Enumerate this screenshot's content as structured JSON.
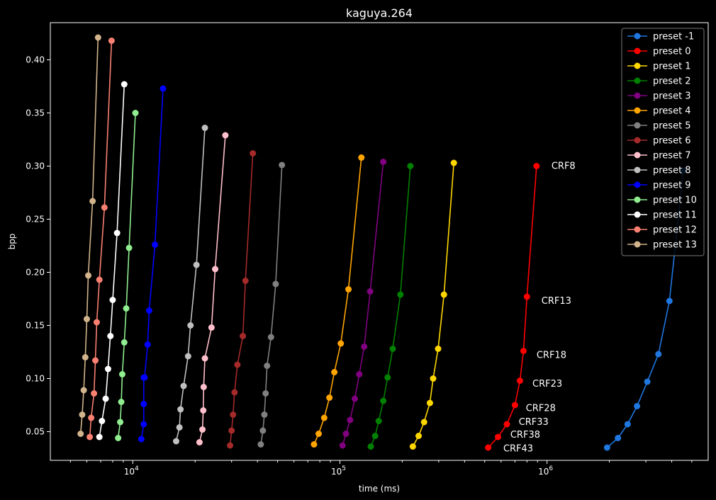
{
  "chart_data": {
    "type": "line",
    "title": "kaguya.264",
    "xlabel": "time (ms)",
    "ylabel": "bpp",
    "xscale": "log",
    "xlim": [
      4000,
      6000000
    ],
    "ylim": [
      0.023,
      0.435
    ],
    "x_ticks": [
      {
        "value": 10000,
        "base": "10",
        "exp": "4"
      },
      {
        "value": 100000,
        "base": "10",
        "exp": "5"
      },
      {
        "value": 1000000,
        "base": "10",
        "exp": "6"
      }
    ],
    "y_ticks": [
      0.05,
      0.1,
      0.15,
      0.2,
      0.25,
      0.3,
      0.35,
      0.4
    ],
    "y_tick_labels": [
      "0.05",
      "0.10",
      "0.15",
      "0.20",
      "0.25",
      "0.30",
      "0.35",
      "0.40"
    ],
    "legend_position": "top-right",
    "grid": false,
    "background": "#000000",
    "series": [
      {
        "name": "preset -1",
        "color": "#1f77e0",
        "x": [
          1950000,
          2200000,
          2450000,
          2720000,
          3050000,
          3450000,
          3900000,
          4550000
        ],
        "y": [
          0.035,
          0.044,
          0.057,
          0.074,
          0.097,
          0.123,
          0.173,
          0.296
        ]
      },
      {
        "name": "preset 0",
        "color": "#ff0000",
        "x": [
          520000,
          580000,
          640000,
          700000,
          740000,
          770000,
          800000,
          890000
        ],
        "y": [
          0.035,
          0.045,
          0.057,
          0.075,
          0.098,
          0.126,
          0.177,
          0.3
        ]
      },
      {
        "name": "preset 1",
        "color": "#ffd700",
        "x": [
          225000,
          240000,
          255000,
          272000,
          282000,
          298000,
          318000,
          355000
        ],
        "y": [
          0.036,
          0.046,
          0.059,
          0.077,
          0.1,
          0.128,
          0.179,
          0.303
        ]
      },
      {
        "name": "preset 2",
        "color": "#008000",
        "x": [
          141000,
          148000,
          154000,
          162000,
          170000,
          180000,
          196000,
          219000
        ],
        "y": [
          0.036,
          0.046,
          0.06,
          0.079,
          0.101,
          0.128,
          0.179,
          0.3
        ]
      },
      {
        "name": "preset 3",
        "color": "#800080",
        "x": [
          103000,
          107000,
          112000,
          118000,
          124000,
          131000,
          140000,
          162000
        ],
        "y": [
          0.037,
          0.048,
          0.061,
          0.081,
          0.104,
          0.13,
          0.182,
          0.304
        ]
      },
      {
        "name": "preset 4",
        "color": "#ffa500",
        "x": [
          75000,
          79000,
          84000,
          89000,
          94000,
          101000,
          110000,
          127000
        ],
        "y": [
          0.038,
          0.048,
          0.063,
          0.082,
          0.106,
          0.133,
          0.184,
          0.308
        ]
      },
      {
        "name": "preset 5",
        "color": "#808080",
        "x": [
          41500,
          42500,
          43200,
          43800,
          44500,
          46500,
          49000,
          52500
        ],
        "y": [
          0.038,
          0.051,
          0.066,
          0.086,
          0.112,
          0.139,
          0.189,
          0.301
        ]
      },
      {
        "name": "preset 6",
        "color": "#a52a2a",
        "x": [
          29500,
          30000,
          30500,
          31000,
          32000,
          34000,
          35000,
          38000
        ],
        "y": [
          0.037,
          0.051,
          0.066,
          0.087,
          0.113,
          0.14,
          0.192,
          0.312
        ]
      },
      {
        "name": "preset 7",
        "color": "#ffc0cb",
        "x": [
          21000,
          21700,
          21900,
          22000,
          22300,
          24000,
          25000,
          28000
        ],
        "y": [
          0.04,
          0.052,
          0.07,
          0.092,
          0.119,
          0.148,
          0.203,
          0.329
        ]
      },
      {
        "name": "preset 8",
        "color": "#c0c0c0",
        "x": [
          16200,
          16800,
          17000,
          17600,
          18500,
          19000,
          20300,
          22300
        ],
        "y": [
          0.041,
          0.054,
          0.071,
          0.093,
          0.121,
          0.15,
          0.207,
          0.336
        ]
      },
      {
        "name": "preset 9",
        "color": "#0000ff",
        "x": [
          11000,
          11300,
          11300,
          11300,
          11400,
          11800,
          12000,
          12800,
          14000
        ],
        "y": [
          0.043,
          0.057,
          0.076,
          0.101,
          0.101,
          0.132,
          0.164,
          0.226,
          0.373
        ]
      },
      {
        "name": "preset 10",
        "color": "#90ee90",
        "x": [
          8500,
          8700,
          8800,
          8900,
          9100,
          9300,
          9600,
          10300
        ],
        "y": [
          0.044,
          0.059,
          0.078,
          0.104,
          0.134,
          0.166,
          0.223,
          0.35
        ]
      },
      {
        "name": "preset 11",
        "color": "#ffffff",
        "x": [
          6900,
          7100,
          7400,
          7600,
          7800,
          8000,
          8400,
          9100
        ],
        "y": [
          0.045,
          0.06,
          0.081,
          0.109,
          0.14,
          0.174,
          0.237,
          0.377
        ]
      },
      {
        "name": "preset 12",
        "color": "#fa8072",
        "x": [
          6200,
          6300,
          6500,
          6600,
          6700,
          6900,
          7300,
          7900
        ],
        "y": [
          0.045,
          0.063,
          0.086,
          0.117,
          0.153,
          0.193,
          0.261,
          0.418
        ]
      },
      {
        "name": "preset 13",
        "color": "#d2b48c",
        "x": [
          5600,
          5700,
          5800,
          5900,
          6000,
          6100,
          6400,
          6800
        ],
        "y": [
          0.048,
          0.066,
          0.089,
          0.12,
          0.156,
          0.197,
          0.267,
          0.421
        ]
      }
    ],
    "annotations": [
      {
        "text": "CRF8",
        "x": 1050000,
        "y": 0.3
      },
      {
        "text": "CRF13",
        "x": 940000,
        "y": 0.173
      },
      {
        "text": "CRF18",
        "x": 890000,
        "y": 0.122
      },
      {
        "text": "CRF23",
        "x": 850000,
        "y": 0.095
      },
      {
        "text": "CRF28",
        "x": 790000,
        "y": 0.072
      },
      {
        "text": "CRF33",
        "x": 730000,
        "y": 0.059
      },
      {
        "text": "CRF38",
        "x": 665000,
        "y": 0.047
      },
      {
        "text": "CRF43",
        "x": 615000,
        "y": 0.034
      }
    ]
  }
}
